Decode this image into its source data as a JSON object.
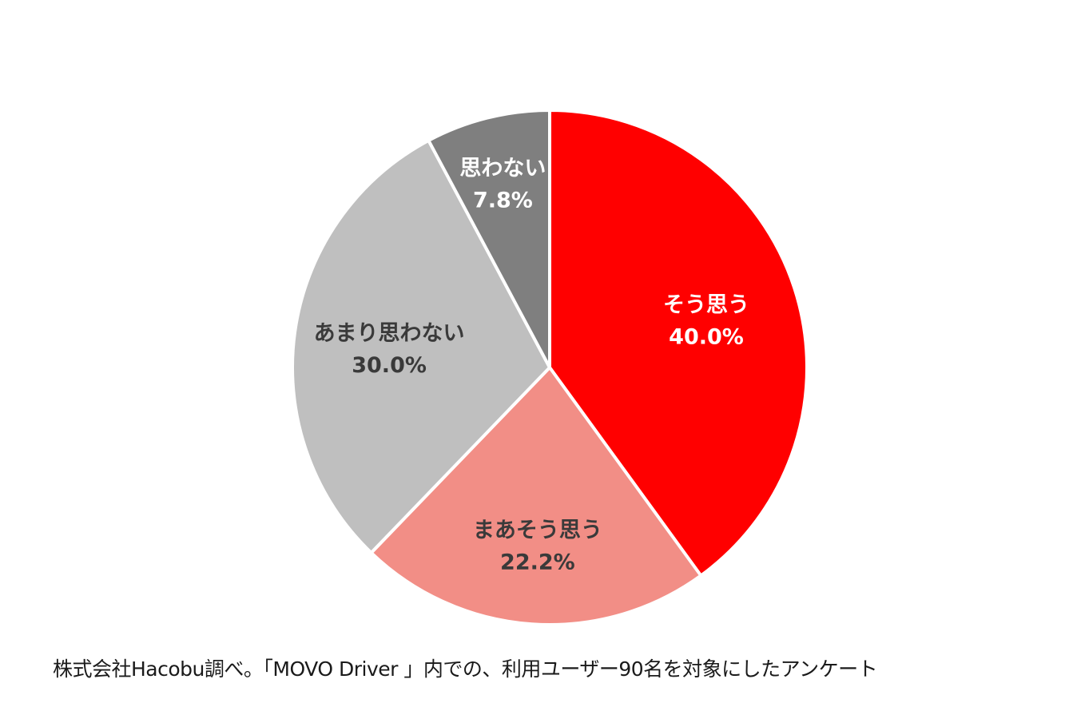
{
  "chart_data": {
    "type": "pie",
    "categories": [
      "そう思う",
      "まあそう思う",
      "あまり思わない",
      "思わない"
    ],
    "values": [
      40.0,
      22.2,
      30.0,
      7.8
    ],
    "value_labels": [
      "40.0%",
      "22.2%",
      "30.0%",
      "7.8%"
    ],
    "colors": [
      "#ff0000",
      "#f28e86",
      "#bfbfbf",
      "#7f7f7f"
    ],
    "label_colors": [
      "#ffffff",
      "#3a3a3a",
      "#3a3a3a",
      "#ffffff"
    ],
    "start": "12 o'clock",
    "direction": "clockwise",
    "legend": "none"
  },
  "caption": "株式会社Hacobu調べ。「MOVO Driver 」内での、利用ユーザー90名を対象にしたアンケート"
}
